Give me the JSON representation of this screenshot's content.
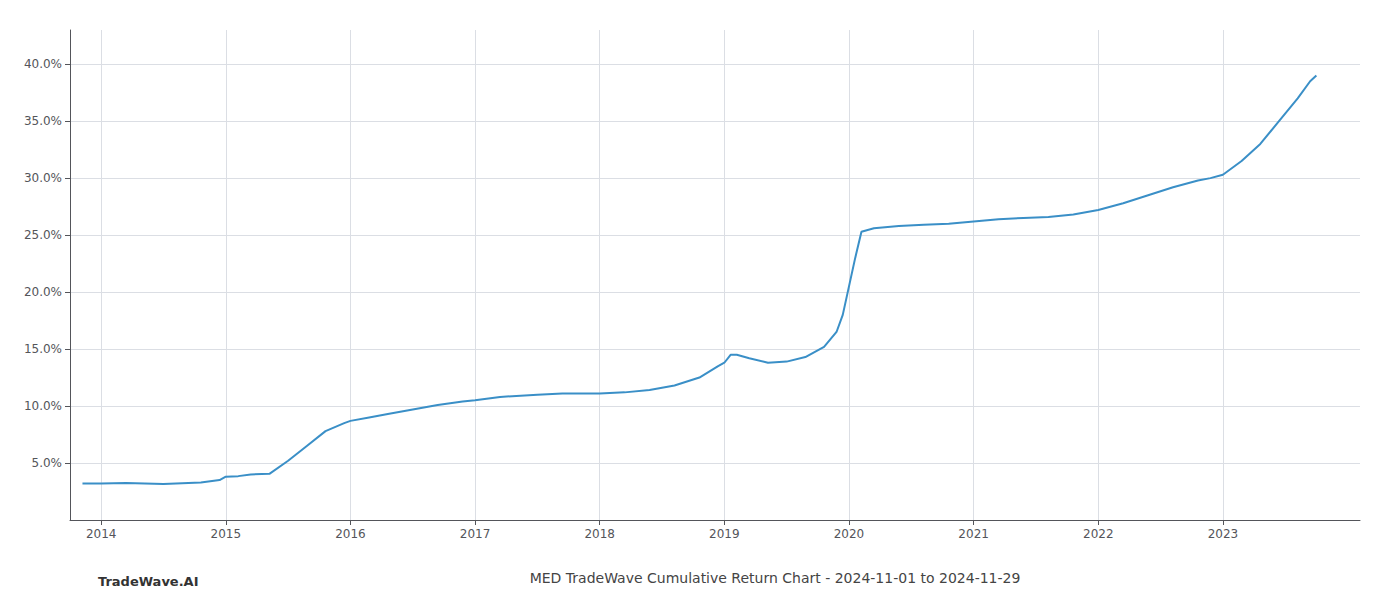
{
  "chart_data": {
    "type": "line",
    "title": "MED TradeWave Cumulative Return Chart - 2024-11-01 to 2024-11-29",
    "annotations": [
      "TradeWave.AI"
    ],
    "color": "#3a8fc7",
    "grid": true,
    "x": [
      2013.85,
      2014.0,
      2014.2,
      2014.5,
      2014.8,
      2014.95,
      2015.0,
      2015.1,
      2015.2,
      2015.35,
      2015.5,
      2015.65,
      2015.8,
      2015.95,
      2016.0,
      2016.15,
      2016.3,
      2016.5,
      2016.7,
      2016.9,
      2017.0,
      2017.2,
      2017.5,
      2017.7,
      2017.9,
      2018.0,
      2018.2,
      2018.4,
      2018.6,
      2018.8,
      2018.95,
      2019.0,
      2019.05,
      2019.1,
      2019.2,
      2019.35,
      2019.5,
      2019.65,
      2019.8,
      2019.9,
      2019.95,
      2020.0,
      2020.05,
      2020.1,
      2020.2,
      2020.4,
      2020.6,
      2020.8,
      2021.0,
      2021.2,
      2021.4,
      2021.6,
      2021.8,
      2022.0,
      2022.2,
      2022.4,
      2022.6,
      2022.8,
      2022.9,
      2023.0,
      2023.15,
      2023.3,
      2023.45,
      2023.6,
      2023.7,
      2023.75
    ],
    "values": [
      3.2,
      3.2,
      3.25,
      3.15,
      3.3,
      3.5,
      3.8,
      3.85,
      4.0,
      4.05,
      5.2,
      6.5,
      7.8,
      8.5,
      8.7,
      9.0,
      9.3,
      9.7,
      10.1,
      10.4,
      10.5,
      10.8,
      11.0,
      11.1,
      11.1,
      11.1,
      11.2,
      11.4,
      11.8,
      12.5,
      13.5,
      13.8,
      14.5,
      14.5,
      14.2,
      13.8,
      13.9,
      14.3,
      15.2,
      16.5,
      18.0,
      20.5,
      23.0,
      25.3,
      25.6,
      25.8,
      25.9,
      26.0,
      26.2,
      26.4,
      26.5,
      26.6,
      26.8,
      27.2,
      27.8,
      28.5,
      29.2,
      29.8,
      30.0,
      30.3,
      31.5,
      33.0,
      35.0,
      37.0,
      38.5,
      39.0
    ],
    "xlim": [
      2013.75,
      2024.1
    ],
    "xticks": [
      2014,
      2015,
      2016,
      2017,
      2018,
      2019,
      2020,
      2021,
      2022,
      2023
    ],
    "ylim": [
      0,
      43
    ],
    "yticks": [
      {
        "value": 5.0,
        "label": "5.0%"
      },
      {
        "value": 10.0,
        "label": "10.0%"
      },
      {
        "value": 15.0,
        "label": "15.0%"
      },
      {
        "value": 20.0,
        "label": "20.0%"
      },
      {
        "value": 25.0,
        "label": "25.0%"
      },
      {
        "value": 30.0,
        "label": "30.0%"
      },
      {
        "value": 35.0,
        "label": "35.0%"
      },
      {
        "value": 40.0,
        "label": "40.0%"
      }
    ]
  }
}
